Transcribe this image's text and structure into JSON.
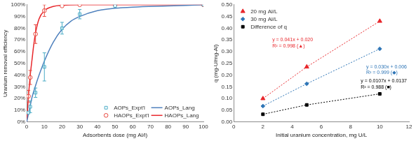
{
  "chart_data": [
    {
      "type": "scatter",
      "x_label": "Adsorbents dose (mg Al/l)",
      "y_label": "Uranium removal efficiency",
      "xlim": [
        0,
        100
      ],
      "xticks": [
        0,
        10,
        20,
        30,
        40,
        50,
        60,
        70,
        80,
        90,
        100
      ],
      "ylim": [
        0,
        100
      ],
      "yticks": [
        {
          "value": 0,
          "label": "0%"
        },
        {
          "value": 10,
          "label": "10%"
        },
        {
          "value": 20,
          "label": "20%"
        },
        {
          "value": 30,
          "label": "30%"
        },
        {
          "value": 40,
          "label": "40%"
        },
        {
          "value": 50,
          "label": "50%"
        },
        {
          "value": 60,
          "label": "60%"
        },
        {
          "value": 70,
          "label": "70%"
        },
        {
          "value": 80,
          "label": "80%"
        },
        {
          "value": 90,
          "label": "90%"
        },
        {
          "value": 100,
          "label": "100%"
        }
      ],
      "grid": false,
      "legend": "bottom-right",
      "series": [
        {
          "name": "AOPs_Expt'l",
          "type": "scatter",
          "color": "#4bacc6",
          "marker": "open-square",
          "x": [
            1,
            2,
            5,
            10,
            20,
            30,
            50,
            100
          ],
          "values": [
            8,
            13,
            25,
            47,
            80,
            92,
            99,
            100
          ],
          "errors": [
            null,
            5,
            4,
            12,
            5,
            4,
            null,
            null
          ]
        },
        {
          "name": "AOPs_Lang",
          "type": "line",
          "color": "#4f81bd",
          "line_style": "solid",
          "x": [
            0,
            1,
            2,
            3,
            5,
            7,
            10,
            15,
            20,
            25,
            30,
            40,
            50,
            60,
            80,
            100
          ],
          "values": [
            0,
            7,
            14,
            21,
            31,
            40,
            52,
            68,
            79,
            86,
            90,
            95,
            97,
            98,
            99,
            100
          ]
        },
        {
          "name": "HAOPs_Expt'l",
          "type": "scatter",
          "color": "#e8483f",
          "marker": "open-circle",
          "x": [
            1,
            2,
            5,
            10,
            20,
            30,
            50,
            100
          ],
          "values": [
            22,
            38,
            75,
            95,
            99,
            100,
            100,
            100
          ],
          "errors": [
            5,
            6,
            8,
            5,
            null,
            null,
            null,
            null
          ]
        },
        {
          "name": "HAOPs_Lang",
          "type": "line",
          "color": "#e8262b",
          "line_style": "solid",
          "x": [
            0,
            1,
            2,
            3,
            4,
            5,
            7,
            10,
            15,
            20,
            30,
            50,
            100
          ],
          "values": [
            0,
            22,
            40,
            53,
            66,
            76,
            88,
            95,
            98.5,
            99.5,
            100,
            100,
            100
          ]
        }
      ]
    },
    {
      "type": "scatter",
      "x_label": "Initial uranium concentration, mg U/L",
      "y_label": "q (mg-U/mg-Al)",
      "xlim": [
        0,
        12
      ],
      "xticks": [
        0,
        2,
        4,
        6,
        8,
        10,
        12
      ],
      "ylim": [
        0,
        0.5
      ],
      "yticks": [
        {
          "value": 0,
          "label": "0.00"
        },
        0.05,
        {
          "value": 0.1,
          "label": "0.10"
        },
        0.15,
        {
          "value": 0.2,
          "label": "0.20"
        },
        0.25,
        {
          "value": 0.3,
          "label": "0.30"
        },
        0.35,
        {
          "value": 0.4,
          "label": "0.40"
        },
        0.45,
        {
          "value": 0.5,
          "label": "0.50"
        }
      ],
      "grid": false,
      "legend": "top-left",
      "series": [
        {
          "name": "20 mg Al/L",
          "type": "scatter",
          "color": "#e8262b",
          "marker": "triangle",
          "line_style": "dotted",
          "x": [
            2,
            5,
            10
          ],
          "values": [
            0.1,
            0.235,
            0.43
          ],
          "annotation": [
            "y = 0.041x + 0.020",
            "R² = 0.998 (▲)"
          ]
        },
        {
          "name": "30 mg Al/L",
          "type": "scatter",
          "color": "#2e75b6",
          "marker": "diamond",
          "line_style": "dotted",
          "x": [
            2,
            5,
            10
          ],
          "values": [
            0.068,
            0.163,
            0.312
          ],
          "annotation": [
            "y = 0.030x + 0.006",
            "R² = 0.999 (◆)"
          ]
        },
        {
          "name": "Difference of q",
          "type": "scatter",
          "color": "#000000",
          "marker": "square",
          "line_style": "dotted",
          "x": [
            2,
            5,
            10
          ],
          "values": [
            0.033,
            0.073,
            0.12
          ],
          "annotation": [
            "y = 0.0107x + 0.0137",
            "R² = 0.988 (■)"
          ]
        }
      ]
    }
  ]
}
